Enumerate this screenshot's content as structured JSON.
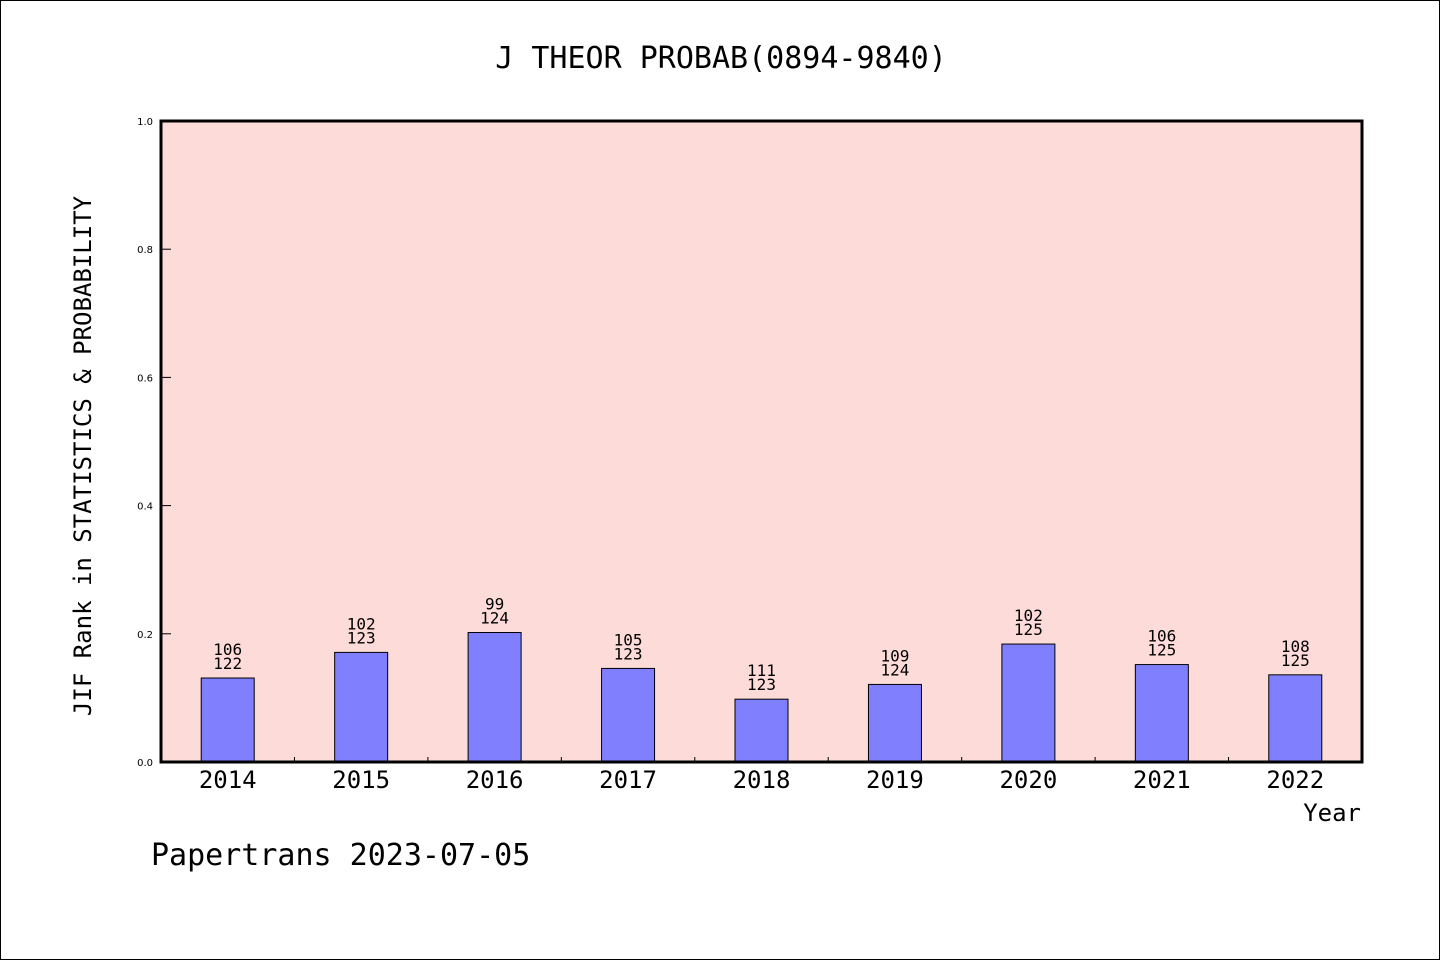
{
  "chart_data": {
    "type": "bar",
    "title": "J THEOR PROBAB(0894-9840)",
    "xlabel": "Year",
    "ylabel": "JIF Rank in STATISTICS & PROBABILITY",
    "ylim": [
      0,
      1.0
    ],
    "yticks": [
      "0.0",
      "0.2",
      "0.4",
      "0.6",
      "0.8",
      "1.0"
    ],
    "grid": false,
    "categories": [
      "2014",
      "2015",
      "2016",
      "2017",
      "2018",
      "2019",
      "2020",
      "2021",
      "2022"
    ],
    "values": [
      0.131,
      0.171,
      0.202,
      0.146,
      0.098,
      0.121,
      0.184,
      0.152,
      0.136
    ],
    "rank": [
      "106",
      "102",
      "99",
      "105",
      "111",
      "109",
      "102",
      "106",
      "108"
    ],
    "total": [
      "122",
      "123",
      "124",
      "123",
      "123",
      "124",
      "125",
      "125",
      "125"
    ],
    "colors": {
      "plot_background": "#fddbd8",
      "bar_fill": "#8080ff",
      "bar_stroke": "#000000"
    }
  },
  "footer": {
    "text": "Papertrans 2023-07-05"
  }
}
